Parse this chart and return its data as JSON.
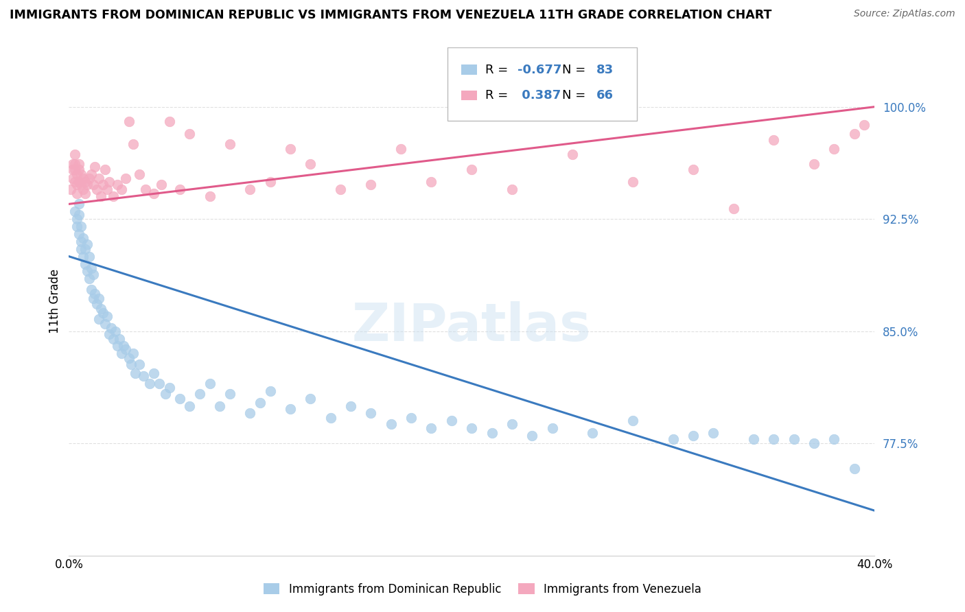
{
  "title": "IMMIGRANTS FROM DOMINICAN REPUBLIC VS IMMIGRANTS FROM VENEZUELA 11TH GRADE CORRELATION CHART",
  "source": "Source: ZipAtlas.com",
  "ylabel": "11th Grade",
  "ytick_labels": [
    "77.5%",
    "85.0%",
    "92.5%",
    "100.0%"
  ],
  "ytick_values": [
    0.775,
    0.85,
    0.925,
    1.0
  ],
  "xlim": [
    0.0,
    0.4
  ],
  "ylim": [
    0.7,
    1.04
  ],
  "legend_blue_r": "-0.677",
  "legend_blue_n": "83",
  "legend_pink_r": "0.387",
  "legend_pink_n": "66",
  "blue_color": "#a8cce8",
  "pink_color": "#f4a8be",
  "blue_line_color": "#3a7abf",
  "pink_line_color": "#e05a8a",
  "watermark": "ZIPatlas",
  "blue_scatter_x": [
    0.003,
    0.004,
    0.004,
    0.005,
    0.005,
    0.005,
    0.006,
    0.006,
    0.006,
    0.007,
    0.007,
    0.008,
    0.008,
    0.009,
    0.009,
    0.01,
    0.01,
    0.011,
    0.011,
    0.012,
    0.012,
    0.013,
    0.014,
    0.015,
    0.015,
    0.016,
    0.017,
    0.018,
    0.019,
    0.02,
    0.021,
    0.022,
    0.023,
    0.024,
    0.025,
    0.026,
    0.027,
    0.028,
    0.03,
    0.031,
    0.032,
    0.033,
    0.035,
    0.037,
    0.04,
    0.042,
    0.045,
    0.048,
    0.05,
    0.055,
    0.06,
    0.065,
    0.07,
    0.075,
    0.08,
    0.09,
    0.095,
    0.1,
    0.11,
    0.12,
    0.13,
    0.14,
    0.15,
    0.16,
    0.17,
    0.18,
    0.19,
    0.2,
    0.21,
    0.22,
    0.23,
    0.24,
    0.26,
    0.28,
    0.3,
    0.31,
    0.32,
    0.34,
    0.35,
    0.36,
    0.37,
    0.38,
    0.39
  ],
  "blue_scatter_y": [
    0.93,
    0.925,
    0.92,
    0.935,
    0.928,
    0.915,
    0.92,
    0.91,
    0.905,
    0.912,
    0.9,
    0.905,
    0.895,
    0.908,
    0.89,
    0.9,
    0.885,
    0.892,
    0.878,
    0.888,
    0.872,
    0.875,
    0.868,
    0.872,
    0.858,
    0.865,
    0.862,
    0.855,
    0.86,
    0.848,
    0.852,
    0.845,
    0.85,
    0.84,
    0.845,
    0.835,
    0.84,
    0.838,
    0.832,
    0.828,
    0.835,
    0.822,
    0.828,
    0.82,
    0.815,
    0.822,
    0.815,
    0.808,
    0.812,
    0.805,
    0.8,
    0.808,
    0.815,
    0.8,
    0.808,
    0.795,
    0.802,
    0.81,
    0.798,
    0.805,
    0.792,
    0.8,
    0.795,
    0.788,
    0.792,
    0.785,
    0.79,
    0.785,
    0.782,
    0.788,
    0.78,
    0.785,
    0.782,
    0.79,
    0.778,
    0.78,
    0.782,
    0.778,
    0.778,
    0.778,
    0.775,
    0.778,
    0.758
  ],
  "pink_scatter_x": [
    0.001,
    0.002,
    0.002,
    0.002,
    0.003,
    0.003,
    0.003,
    0.003,
    0.004,
    0.004,
    0.004,
    0.005,
    0.005,
    0.005,
    0.006,
    0.006,
    0.007,
    0.007,
    0.008,
    0.008,
    0.009,
    0.01,
    0.011,
    0.012,
    0.013,
    0.014,
    0.015,
    0.016,
    0.017,
    0.018,
    0.019,
    0.02,
    0.022,
    0.024,
    0.026,
    0.028,
    0.03,
    0.032,
    0.035,
    0.038,
    0.042,
    0.046,
    0.05,
    0.055,
    0.06,
    0.07,
    0.08,
    0.09,
    0.1,
    0.11,
    0.12,
    0.135,
    0.15,
    0.165,
    0.18,
    0.2,
    0.22,
    0.25,
    0.28,
    0.31,
    0.33,
    0.35,
    0.37,
    0.38,
    0.39,
    0.395
  ],
  "pink_scatter_y": [
    0.945,
    0.962,
    0.958,
    0.952,
    0.968,
    0.962,
    0.958,
    0.95,
    0.955,
    0.948,
    0.942,
    0.962,
    0.958,
    0.95,
    0.955,
    0.948,
    0.952,
    0.945,
    0.95,
    0.942,
    0.948,
    0.952,
    0.955,
    0.948,
    0.96,
    0.945,
    0.952,
    0.94,
    0.948,
    0.958,
    0.945,
    0.95,
    0.94,
    0.948,
    0.945,
    0.952,
    0.99,
    0.975,
    0.955,
    0.945,
    0.942,
    0.948,
    0.99,
    0.945,
    0.982,
    0.94,
    0.975,
    0.945,
    0.95,
    0.972,
    0.962,
    0.945,
    0.948,
    0.972,
    0.95,
    0.958,
    0.945,
    0.968,
    0.95,
    0.958,
    0.932,
    0.978,
    0.962,
    0.972,
    0.982,
    0.988
  ],
  "blue_trendline_x": [
    0.0,
    0.4
  ],
  "blue_trendline_y": [
    0.9,
    0.73
  ],
  "pink_trendline_x": [
    0.0,
    0.4
  ],
  "pink_trendline_y": [
    0.935,
    1.0
  ]
}
